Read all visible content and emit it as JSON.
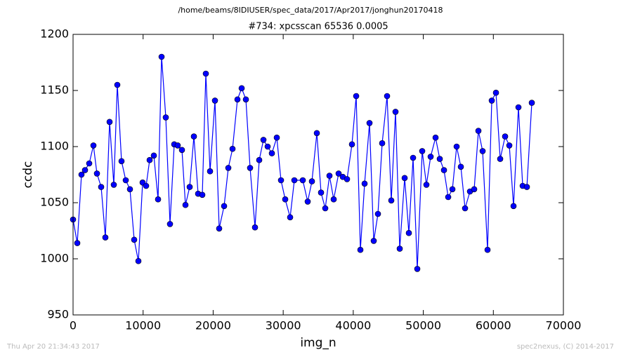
{
  "chart_data": {
    "type": "line",
    "suptitle": "/home/beams/8IDIUSER/spec_data/2017/Apr2017/jonghun20170418",
    "title": "#734: xpcsscan 65536 0.0005",
    "xlabel": "img_n",
    "ylabel": "ccdc",
    "footer_left": "Thu Apr 20 21:34:43 2017",
    "footer_right": "spec2nexus, (C) 2014-2017",
    "color": "#0000ff",
    "marker": "circle",
    "grid": false,
    "xlim": [
      0,
      70000
    ],
    "xticks": [
      0,
      10000,
      20000,
      30000,
      40000,
      50000,
      60000,
      70000
    ],
    "ylim": [
      950,
      1200
    ],
    "yticks": [
      950,
      1000,
      1050,
      1100,
      1150,
      1200
    ],
    "x": [
      0,
      602,
      1203,
      1705,
      2307,
      2908,
      3410,
      4011,
      4613,
      5215,
      5817,
      6318,
      6920,
      7522,
      8123,
      8725,
      9327,
      9928,
      10430,
      10932,
      11533,
      12135,
      12637,
      13238,
      13840,
      14442,
      14943,
      15545,
      16046,
      16648,
      17250,
      17852,
      18453,
      18955,
      19557,
      20259,
      20861,
      21563,
      22165,
      22766,
      23468,
      24070,
      24672,
      25273,
      25975,
      26577,
      27179,
      27780,
      28382,
      29084,
      29686,
      30288,
      30990,
      31591,
      32795,
      33497,
      34099,
      34801,
      35402,
      36004,
      36606,
      37208,
      37910,
      38511,
      39113,
      39815,
      40417,
      41019,
      41620,
      42322,
      42924,
      43526,
      44128,
      44830,
      45431,
      46033,
      46635,
      47337,
      47939,
      48541,
      49142,
      49844,
      50446,
      51048,
      51750,
      52351,
      52953,
      53555,
      54157,
      54758,
      55360,
      55962,
      56664,
      57266,
      57868,
      58469,
      59171,
      59773,
      60375,
      60977,
      61679,
      62280,
      62882,
      63584,
      64186,
      64787,
      65489
    ],
    "values": [
      1035,
      1014,
      1075,
      1079,
      1085,
      1101,
      1076,
      1064,
      1019,
      1122,
      1066,
      1155,
      1087,
      1070,
      1062,
      1017,
      998,
      1068,
      1065,
      1088,
      1092,
      1053,
      1180,
      1126,
      1031,
      1102,
      1101,
      1097,
      1048,
      1064,
      1109,
      1058,
      1057,
      1165,
      1078,
      1141,
      1027,
      1047,
      1081,
      1098,
      1142,
      1152,
      1142,
      1081,
      1028,
      1088,
      1106,
      1100,
      1094,
      1108,
      1070,
      1053,
      1037,
      1070,
      1070,
      1051,
      1069,
      1112,
      1059,
      1045,
      1074,
      1053,
      1076,
      1073,
      1071,
      1102,
      1145,
      1008,
      1067,
      1121,
      1016,
      1040,
      1103,
      1145,
      1052,
      1131,
      1009,
      1072,
      1023,
      1090,
      991,
      1096,
      1066,
      1091,
      1108,
      1089,
      1079,
      1055,
      1062,
      1100,
      1082,
      1045,
      1060,
      1062,
      1114,
      1096,
      1008,
      1141,
      1148,
      1089,
      1109,
      1101,
      1047,
      1135,
      1065,
      1064,
      1139
    ]
  }
}
